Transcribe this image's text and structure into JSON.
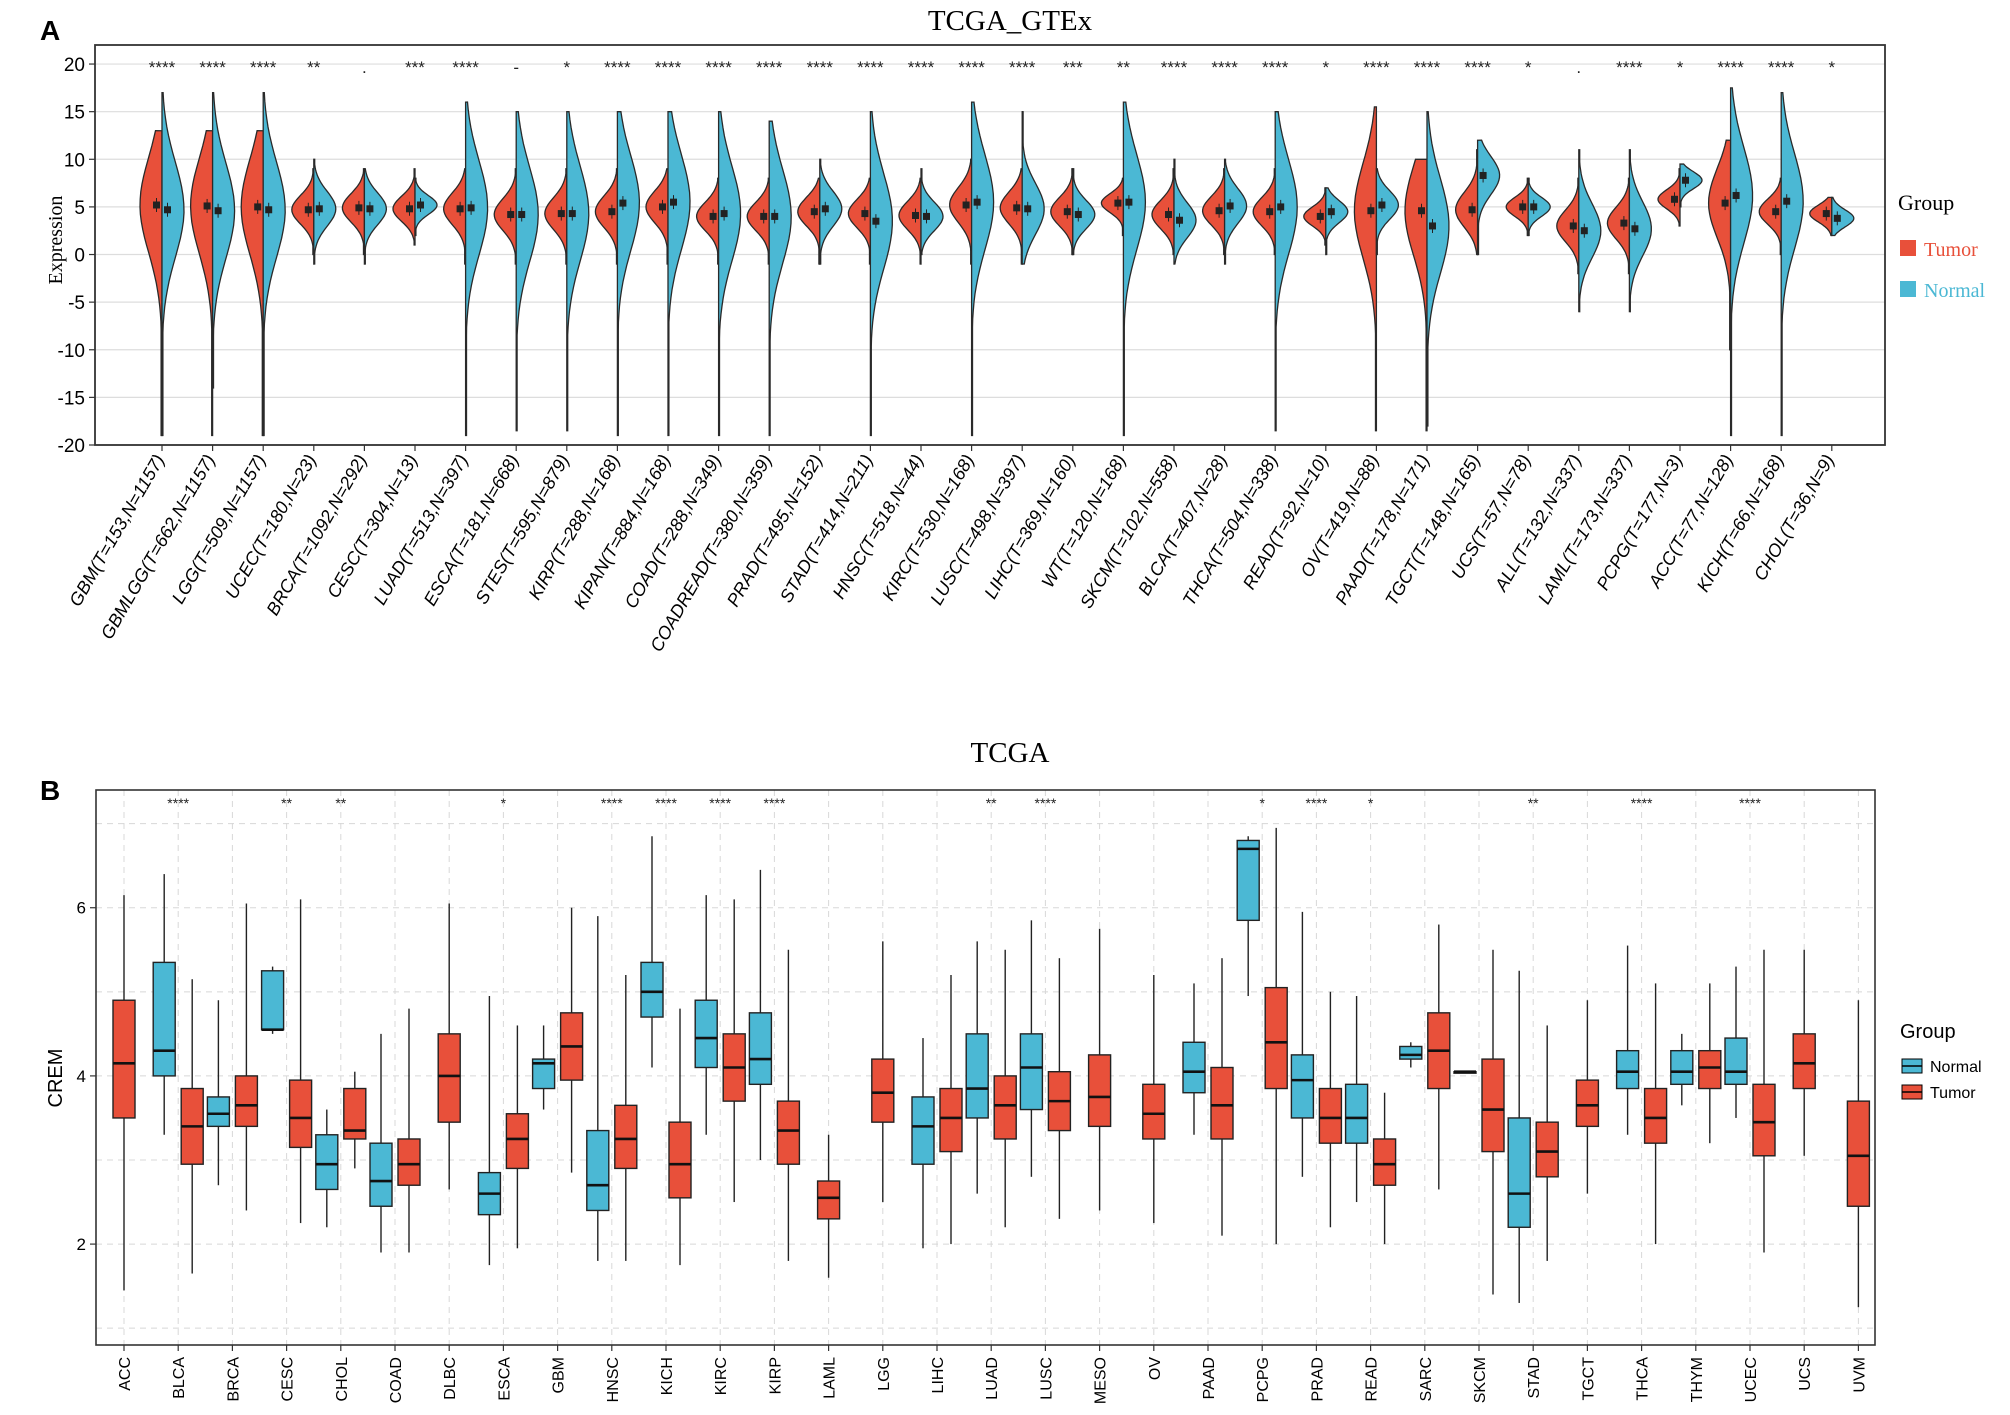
{
  "panel_a": {
    "label": "A",
    "chart_data": {
      "type": "violin",
      "title": "TCGA_GTEx",
      "ylabel": "Expression",
      "ylim": [
        -20,
        22
      ],
      "yticks": [
        -20,
        -15,
        -10,
        -5,
        0,
        5,
        10,
        15,
        20
      ],
      "legend": {
        "title": "Group",
        "placement": "right",
        "items": [
          {
            "name": "Tumor",
            "color": "#E8503A"
          },
          {
            "name": "Normal",
            "color": "#4BB8D4"
          }
        ]
      },
      "categories": [
        "GBM(T=153,N=1157)",
        "GBMLGG(T=662,N=1157)",
        "LGG(T=509,N=1157)",
        "UCEC(T=180,N=23)",
        "BRCA(T=1092,N=292)",
        "CESC(T=304,N=13)",
        "LUAD(T=513,N=397)",
        "ESCA(T=181,N=668)",
        "STES(T=595,N=879)",
        "KIRP(T=288,N=168)",
        "KIPAN(T=884,N=168)",
        "COAD(T=288,N=349)",
        "COADREAD(T=380,N=359)",
        "PRAD(T=495,N=152)",
        "STAD(T=414,N=211)",
        "HNSC(T=518,N=44)",
        "KIRC(T=530,N=168)",
        "LUSC(T=498,N=397)",
        "LIHC(T=369,N=160)",
        "WT(T=120,N=168)",
        "SKCM(T=102,N=558)",
        "BLCA(T=407,N=28)",
        "THCA(T=504,N=338)",
        "READ(T=92,N=10)",
        "OV(T=419,N=88)",
        "PAAD(T=178,N=171)",
        "TGCT(T=148,N=165)",
        "UCS(T=57,N=78)",
        "ALL(T=132,N=337)",
        "LAML(T=173,N=337)",
        "PCPG(T=177,N=3)",
        "ACC(T=77,N=128)",
        "KICH(T=66,N=168)",
        "CHOL(T=36,N=9)"
      ],
      "significance": [
        "****",
        "****",
        "****",
        "**",
        ".",
        "***",
        "****",
        "-",
        "*",
        "****",
        "****",
        "****",
        "****",
        "****",
        "****",
        "****",
        "****",
        "****",
        "***",
        "**",
        "****",
        "****",
        "****",
        "*",
        "****",
        "****",
        "****",
        "*",
        ".",
        "****",
        "*",
        "****",
        "****",
        "*"
      ],
      "tumor": [
        {
          "median": 5.2,
          "min": -19,
          "max": 13
        },
        {
          "median": 5.1,
          "min": -19,
          "max": 13
        },
        {
          "median": 5.0,
          "min": -19,
          "max": 13
        },
        {
          "median": 4.7,
          "min": 0,
          "max": 9
        },
        {
          "median": 4.9,
          "min": 0,
          "max": 9
        },
        {
          "median": 4.8,
          "min": 1,
          "max": 9
        },
        {
          "median": 4.8,
          "min": -1,
          "max": 9
        },
        {
          "median": 4.2,
          "min": -1,
          "max": 9
        },
        {
          "median": 4.3,
          "min": -1,
          "max": 9
        },
        {
          "median": 4.5,
          "min": -1,
          "max": 9
        },
        {
          "median": 5.0,
          "min": -1,
          "max": 9
        },
        {
          "median": 4.0,
          "min": -1,
          "max": 8
        },
        {
          "median": 4.0,
          "min": -1,
          "max": 8
        },
        {
          "median": 4.5,
          "min": -1,
          "max": 8
        },
        {
          "median": 4.3,
          "min": -1,
          "max": 8
        },
        {
          "median": 4.1,
          "min": -1,
          "max": 8
        },
        {
          "median": 5.2,
          "min": -1,
          "max": 10
        },
        {
          "median": 4.9,
          "min": -1,
          "max": 9
        },
        {
          "median": 4.5,
          "min": 0,
          "max": 9
        },
        {
          "median": 5.4,
          "min": 2,
          "max": 8
        },
        {
          "median": 4.2,
          "min": 0,
          "max": 9
        },
        {
          "median": 4.6,
          "min": 0,
          "max": 9
        },
        {
          "median": 4.5,
          "min": 0,
          "max": 9
        },
        {
          "median": 4.0,
          "min": 1,
          "max": 7
        },
        {
          "median": 4.6,
          "min": -18.5,
          "max": 15.5
        },
        {
          "median": 4.6,
          "min": -18.5,
          "max": 10
        },
        {
          "median": 4.7,
          "min": 0,
          "max": 11
        },
        {
          "median": 5.0,
          "min": 2,
          "max": 8
        },
        {
          "median": 3.0,
          "min": -2,
          "max": 8
        },
        {
          "median": 3.3,
          "min": -2,
          "max": 8
        },
        {
          "median": 5.8,
          "min": 3,
          "max": 9
        },
        {
          "median": 5.4,
          "min": -10,
          "max": 12
        },
        {
          "median": 4.5,
          "min": 0,
          "max": 8
        },
        {
          "median": 4.3,
          "min": 2,
          "max": 6
        }
      ],
      "normal": [
        {
          "median": 4.7,
          "min": -19,
          "max": 17
        },
        {
          "median": 4.6,
          "min": -14,
          "max": 17
        },
        {
          "median": 4.7,
          "min": -19,
          "max": 17
        },
        {
          "median": 4.8,
          "min": -1,
          "max": 10
        },
        {
          "median": 4.8,
          "min": -1,
          "max": 9
        },
        {
          "median": 5.2,
          "min": 2,
          "max": 8
        },
        {
          "median": 4.9,
          "min": -19,
          "max": 16
        },
        {
          "median": 4.2,
          "min": -18.5,
          "max": 15
        },
        {
          "median": 4.3,
          "min": -18.5,
          "max": 15
        },
        {
          "median": 5.4,
          "min": -19,
          "max": 15
        },
        {
          "median": 5.5,
          "min": -19,
          "max": 15
        },
        {
          "median": 4.3,
          "min": -19,
          "max": 15
        },
        {
          "median": 4.0,
          "min": -19,
          "max": 14
        },
        {
          "median": 4.8,
          "min": -1,
          "max": 10
        },
        {
          "median": 3.5,
          "min": -19,
          "max": 15
        },
        {
          "median": 4.0,
          "min": 0,
          "max": 9
        },
        {
          "median": 5.5,
          "min": -19,
          "max": 16
        },
        {
          "median": 4.8,
          "min": -1,
          "max": 15
        },
        {
          "median": 4.2,
          "min": 0,
          "max": 9
        },
        {
          "median": 5.5,
          "min": -19,
          "max": 16
        },
        {
          "median": 3.6,
          "min": -1,
          "max": 10
        },
        {
          "median": 5.1,
          "min": -1,
          "max": 10
        },
        {
          "median": 5.0,
          "min": -18.5,
          "max": 15
        },
        {
          "median": 4.5,
          "min": 0,
          "max": 7
        },
        {
          "median": 5.2,
          "min": 0,
          "max": 9
        },
        {
          "median": 3.0,
          "min": -18,
          "max": 15
        },
        {
          "median": 8.3,
          "min": 0,
          "max": 12
        },
        {
          "median": 5.0,
          "min": 2,
          "max": 8
        },
        {
          "median": 2.5,
          "min": -6,
          "max": 11
        },
        {
          "median": 2.7,
          "min": -6,
          "max": 11
        },
        {
          "median": 7.8,
          "min": 5,
          "max": 9.5
        },
        {
          "median": 6.2,
          "min": -19,
          "max": 17.5
        },
        {
          "median": 5.6,
          "min": -19,
          "max": 17
        },
        {
          "median": 3.8,
          "min": 2,
          "max": 6
        }
      ]
    }
  },
  "panel_b": {
    "label": "B",
    "chart_data": {
      "type": "box",
      "title": "TCGA",
      "xlabel": "",
      "ylabel": "CREM",
      "ylim": [
        0.8,
        7.4
      ],
      "yticks": [
        2,
        4,
        6
      ],
      "legend": {
        "title": "Group",
        "placement": "right",
        "items": [
          {
            "name": "Normal",
            "color": "#4BB8D4"
          },
          {
            "name": "Tumor",
            "color": "#E8503A"
          }
        ]
      },
      "categories": [
        "ACC",
        "BLCA",
        "BRCA",
        "CESC",
        "CHOL",
        "COAD",
        "DLBC",
        "ESCA",
        "GBM",
        "HNSC",
        "KICH",
        "KIRC",
        "KIRP",
        "LAML",
        "LGG",
        "LIHC",
        "LUAD",
        "LUSC",
        "MESO",
        "OV",
        "PAAD",
        "PCPG",
        "PRAD",
        "READ",
        "SARC",
        "SKCM",
        "STAD",
        "TGCT",
        "THCA",
        "THYM",
        "UCEC",
        "UCS",
        "UVM"
      ],
      "significance": [
        "",
        "****",
        "",
        "**",
        "**",
        "",
        "",
        "*",
        "",
        "****",
        "****",
        "****",
        "****",
        "",
        "",
        "",
        "**",
        "****",
        "",
        "",
        "",
        "*",
        "****",
        "*",
        "",
        "",
        "**",
        "",
        "****",
        "",
        "****",
        "",
        ""
      ],
      "normal": [
        null,
        {
          "q1": 4.0,
          "median": 4.3,
          "q3": 5.35,
          "min": 3.3,
          "max": 6.4
        },
        {
          "q1": 3.4,
          "median": 3.55,
          "q3": 3.75,
          "min": 2.7,
          "max": 4.9
        },
        {
          "q1": 4.55,
          "median": 4.55,
          "q3": 5.25,
          "min": 4.5,
          "max": 5.3
        },
        {
          "q1": 2.65,
          "median": 2.95,
          "q3": 3.3,
          "min": 2.2,
          "max": 3.6
        },
        {
          "q1": 2.45,
          "median": 2.75,
          "q3": 3.2,
          "min": 1.9,
          "max": 4.5
        },
        null,
        {
          "q1": 2.35,
          "median": 2.6,
          "q3": 2.85,
          "min": 1.75,
          "max": 4.95
        },
        {
          "q1": 3.85,
          "median": 4.15,
          "q3": 4.2,
          "min": 3.6,
          "max": 4.6
        },
        {
          "q1": 2.4,
          "median": 2.7,
          "q3": 3.35,
          "min": 1.8,
          "max": 5.9
        },
        {
          "q1": 4.7,
          "median": 5.0,
          "q3": 5.35,
          "min": 4.1,
          "max": 6.85
        },
        {
          "q1": 4.1,
          "median": 4.45,
          "q3": 4.9,
          "min": 3.3,
          "max": 6.15
        },
        {
          "q1": 3.9,
          "median": 4.2,
          "q3": 4.75,
          "min": 3.0,
          "max": 6.45
        },
        null,
        null,
        {
          "q1": 2.95,
          "median": 3.4,
          "q3": 3.75,
          "min": 1.95,
          "max": 4.45
        },
        {
          "q1": 3.5,
          "median": 3.85,
          "q3": 4.5,
          "min": 2.6,
          "max": 5.6
        },
        {
          "q1": 3.6,
          "median": 4.1,
          "q3": 4.5,
          "min": 2.8,
          "max": 5.85
        },
        null,
        null,
        {
          "q1": 3.8,
          "median": 4.05,
          "q3": 4.4,
          "min": 3.3,
          "max": 5.1
        },
        {
          "q1": 5.85,
          "median": 6.7,
          "q3": 6.8,
          "min": 4.95,
          "max": 6.85
        },
        {
          "q1": 3.5,
          "median": 3.95,
          "q3": 4.25,
          "min": 2.8,
          "max": 5.95
        },
        {
          "q1": 3.2,
          "median": 3.5,
          "q3": 3.9,
          "min": 2.5,
          "max": 4.95
        },
        {
          "q1": 4.2,
          "median": 4.25,
          "q3": 4.35,
          "min": 4.1,
          "max": 4.4
        },
        {
          "q1": 4.05,
          "median": 4.05,
          "q3": 4.05,
          "min": 4.05,
          "max": 4.05
        },
        {
          "q1": 2.2,
          "median": 2.6,
          "q3": 3.5,
          "min": 1.3,
          "max": 5.25
        },
        null,
        {
          "q1": 3.85,
          "median": 4.05,
          "q3": 4.3,
          "min": 3.3,
          "max": 5.55
        },
        {
          "q1": 3.9,
          "median": 4.05,
          "q3": 4.3,
          "min": 3.65,
          "max": 4.5
        },
        {
          "q1": 3.9,
          "median": 4.05,
          "q3": 4.45,
          "min": 3.5,
          "max": 5.3
        },
        null,
        null
      ],
      "tumor": [
        {
          "q1": 3.5,
          "median": 4.15,
          "q3": 4.9,
          "min": 1.45,
          "max": 6.15
        },
        {
          "q1": 2.95,
          "median": 3.4,
          "q3": 3.85,
          "min": 1.65,
          "max": 5.15
        },
        {
          "q1": 3.4,
          "median": 3.65,
          "q3": 4.0,
          "min": 2.4,
          "max": 6.05
        },
        {
          "q1": 3.15,
          "median": 3.5,
          "q3": 3.95,
          "min": 2.25,
          "max": 6.1
        },
        {
          "q1": 3.25,
          "median": 3.35,
          "q3": 3.85,
          "min": 2.9,
          "max": 4.05
        },
        {
          "q1": 2.7,
          "median": 2.95,
          "q3": 3.25,
          "min": 1.9,
          "max": 4.8
        },
        {
          "q1": 3.45,
          "median": 4.0,
          "q3": 4.5,
          "min": 2.65,
          "max": 6.05
        },
        {
          "q1": 2.9,
          "median": 3.25,
          "q3": 3.55,
          "min": 1.95,
          "max": 4.6
        },
        {
          "q1": 3.95,
          "median": 4.35,
          "q3": 4.75,
          "min": 2.85,
          "max": 6.0
        },
        {
          "q1": 2.9,
          "median": 3.25,
          "q3": 3.65,
          "min": 1.8,
          "max": 5.2
        },
        {
          "q1": 2.55,
          "median": 2.95,
          "q3": 3.45,
          "min": 1.75,
          "max": 4.8
        },
        {
          "q1": 3.7,
          "median": 4.1,
          "q3": 4.5,
          "min": 2.5,
          "max": 6.1
        },
        {
          "q1": 2.95,
          "median": 3.35,
          "q3": 3.7,
          "min": 1.8,
          "max": 5.5
        },
        {
          "q1": 2.3,
          "median": 2.55,
          "q3": 2.75,
          "min": 1.6,
          "max": 3.3
        },
        {
          "q1": 3.45,
          "median": 3.8,
          "q3": 4.2,
          "min": 2.5,
          "max": 5.6
        },
        {
          "q1": 3.1,
          "median": 3.5,
          "q3": 3.85,
          "min": 2.0,
          "max": 5.2
        },
        {
          "q1": 3.25,
          "median": 3.65,
          "q3": 4.0,
          "min": 2.2,
          "max": 5.5
        },
        {
          "q1": 3.35,
          "median": 3.7,
          "q3": 4.05,
          "min": 2.3,
          "max": 5.4
        },
        {
          "q1": 3.4,
          "median": 3.75,
          "q3": 4.25,
          "min": 2.4,
          "max": 5.75
        },
        {
          "q1": 3.25,
          "median": 3.55,
          "q3": 3.9,
          "min": 2.25,
          "max": 5.2
        },
        {
          "q1": 3.25,
          "median": 3.65,
          "q3": 4.1,
          "min": 2.1,
          "max": 5.4
        },
        {
          "q1": 3.85,
          "median": 4.4,
          "q3": 5.05,
          "min": 2.0,
          "max": 6.95
        },
        {
          "q1": 3.2,
          "median": 3.5,
          "q3": 3.85,
          "min": 2.2,
          "max": 5.0
        },
        {
          "q1": 2.7,
          "median": 2.95,
          "q3": 3.25,
          "min": 2.0,
          "max": 3.8
        },
        {
          "q1": 3.85,
          "median": 4.3,
          "q3": 4.75,
          "min": 2.65,
          "max": 5.8
        },
        {
          "q1": 3.1,
          "median": 3.6,
          "q3": 4.2,
          "min": 1.4,
          "max": 5.5
        },
        {
          "q1": 2.8,
          "median": 3.1,
          "q3": 3.45,
          "min": 1.8,
          "max": 4.6
        },
        {
          "q1": 3.4,
          "median": 3.65,
          "q3": 3.95,
          "min": 2.6,
          "max": 4.9
        },
        {
          "q1": 3.2,
          "median": 3.5,
          "q3": 3.85,
          "min": 2.0,
          "max": 5.1
        },
        {
          "q1": 3.85,
          "median": 4.1,
          "q3": 4.3,
          "min": 3.2,
          "max": 5.1
        },
        {
          "q1": 3.05,
          "median": 3.45,
          "q3": 3.9,
          "min": 1.9,
          "max": 5.5
        },
        {
          "q1": 3.85,
          "median": 4.15,
          "q3": 4.5,
          "min": 3.05,
          "max": 5.5
        },
        {
          "q1": 2.45,
          "median": 3.05,
          "q3": 3.7,
          "min": 1.25,
          "max": 4.9
        }
      ]
    }
  }
}
